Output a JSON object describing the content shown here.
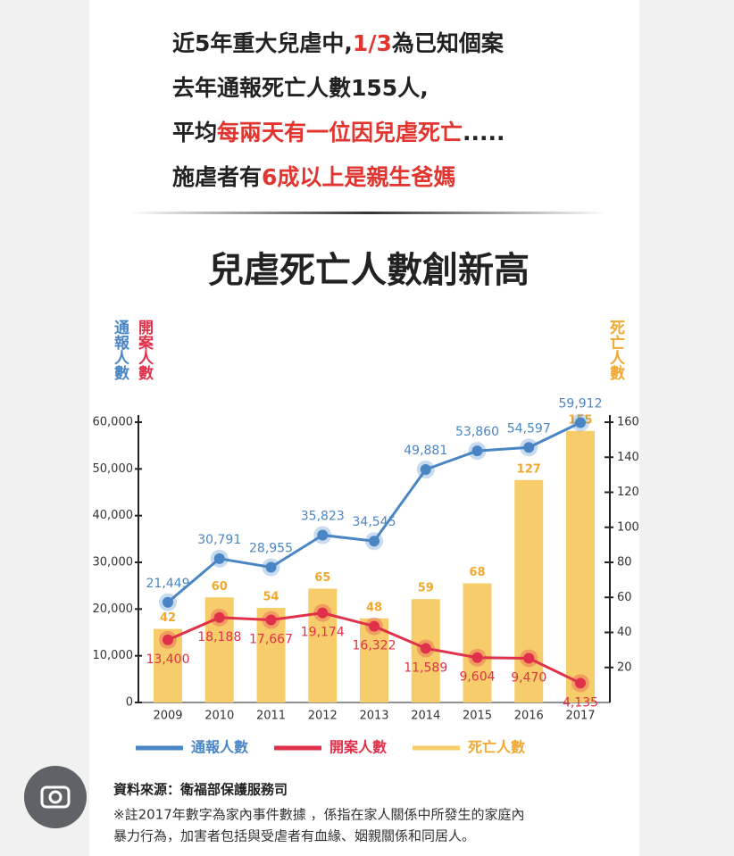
{
  "header": {
    "lines": [
      [
        {
          "text": "近",
          "color": "#222222"
        },
        {
          "text": "5",
          "color": "#222222"
        },
        {
          "text": "年重大兒虐中,",
          "color": "#222222"
        },
        {
          "text": "1/3",
          "color": "#e2352f"
        },
        {
          "text": "為已知個案",
          "color": "#222222"
        }
      ],
      [
        {
          "text": "去年通報死亡人數",
          "color": "#222222"
        },
        {
          "text": "155",
          "color": "#222222"
        },
        {
          "text": "人,",
          "color": "#222222"
        }
      ],
      [
        {
          "text": "平均",
          "color": "#222222"
        },
        {
          "text": "每兩天有一位因兒虐死亡",
          "color": "#e2352f"
        },
        {
          "text": ".....",
          "color": "#222222"
        }
      ],
      [
        {
          "text": "施虐者有",
          "color": "#222222"
        },
        {
          "text": "6",
          "color": "#e2352f"
        },
        {
          "text": "成以上是親生爸媽",
          "color": "#e2352f"
        }
      ]
    ]
  },
  "chart_data": {
    "type": "combo",
    "title": "兒虐死亡人數創新高",
    "y_label": "通報人數",
    "y_label2": "開案人數",
    "y2_label": "死亡人數",
    "categories": [
      "2009",
      "2010",
      "2011",
      "2012",
      "2013",
      "2014",
      "2015",
      "2016",
      "2017"
    ],
    "ylim": [
      0,
      60000
    ],
    "yticks": [
      0,
      {
        "value": 10000,
        "label": "10,000"
      },
      {
        "value": 20000,
        "label": "20,000"
      },
      {
        "value": 30000,
        "label": "30,000"
      },
      {
        "value": 40000,
        "label": "40,000"
      },
      {
        "value": 50000,
        "label": "50,000"
      },
      {
        "value": 60000,
        "label": "60,000"
      }
    ],
    "y2lim": [
      0,
      160
    ],
    "y2ticks": [
      20,
      40,
      60,
      80,
      100,
      120,
      140,
      160
    ],
    "grid": false,
    "series": [
      {
        "name": "通報人數",
        "type": "line",
        "color": "#4a86c5",
        "axis": "y",
        "values": [
          21449,
          30791,
          28955,
          35823,
          34545,
          49881,
          53860,
          54597,
          59912
        ],
        "value_labels": [
          "21,449",
          "30,791",
          "28,955",
          "35,823",
          "34,545",
          "49,881",
          "53,860",
          "54,597",
          "59,912"
        ]
      },
      {
        "name": "開案人數",
        "type": "line",
        "color": "#e0304a",
        "axis": "y",
        "values": [
          13400,
          18188,
          17667,
          19174,
          16322,
          11589,
          9604,
          9470,
          4135
        ],
        "value_labels": [
          "13,400",
          "18,188",
          "17,667",
          "19,174",
          "16,322",
          "11,589",
          "9,604",
          "9,470",
          "4,135"
        ]
      },
      {
        "name": "死亡人數",
        "type": "bar",
        "color": "#f7cd6b",
        "axis": "y2",
        "values": [
          42,
          60,
          54,
          65,
          48,
          59,
          68,
          127,
          155
        ]
      }
    ]
  },
  "source": {
    "title": "資料來源：衛福部保護服務司",
    "note": [
      "※註2017年數字為家內事件數據 ，係指在家人關係中所發生的家庭內",
      "暴力行為，加害者包括與受虐者有血緣、姻親關係和同居人。"
    ]
  }
}
